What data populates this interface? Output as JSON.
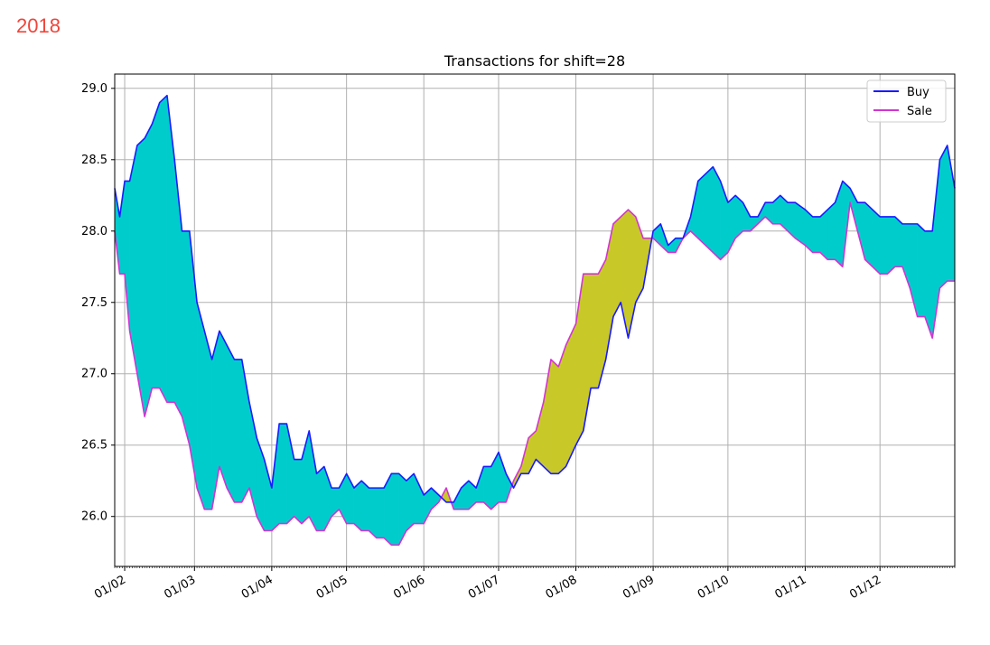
{
  "year_label": "2018",
  "colors": {
    "year_label": "#f0453a",
    "buy": "#1a1aff",
    "sale": "#d234d2",
    "fill_buy_above": "#00cccc",
    "fill_sale_above": "#c8c828",
    "grid": "#b0b0b0"
  },
  "chart_data": {
    "type": "line",
    "title": "Transactions for shift=28",
    "xlabel": "",
    "ylabel": "",
    "ylim": [
      25.65,
      29.1
    ],
    "yticks": [
      "26.0",
      "26.5",
      "27.0",
      "27.5",
      "28.0",
      "28.5",
      "29.0"
    ],
    "ytick_values": [
      26.0,
      26.5,
      27.0,
      27.5,
      28.0,
      28.5,
      29.0
    ],
    "xlim": [
      "2018-01-28",
      "2018-12-31"
    ],
    "xticks": [
      "01/02",
      "01/03",
      "01/04",
      "01/05",
      "01/06",
      "01/07",
      "01/08",
      "01/09",
      "01/10",
      "01/11",
      "01/12"
    ],
    "xtick_dates": [
      "2018-02-01",
      "2018-03-01",
      "2018-04-01",
      "2018-05-01",
      "2018-06-01",
      "2018-07-01",
      "2018-08-01",
      "2018-09-01",
      "2018-10-01",
      "2018-11-01",
      "2018-12-01"
    ],
    "grid": true,
    "legend_position": "top-right",
    "fill_between": true,
    "series": [
      {
        "name": "Buy",
        "x": [
          "2018-01-28",
          "2018-01-30",
          "2018-02-01",
          "2018-02-03",
          "2018-02-06",
          "2018-02-09",
          "2018-02-12",
          "2018-02-15",
          "2018-02-18",
          "2018-02-21",
          "2018-02-24",
          "2018-02-27",
          "2018-03-02",
          "2018-03-05",
          "2018-03-08",
          "2018-03-11",
          "2018-03-14",
          "2018-03-17",
          "2018-03-20",
          "2018-03-23",
          "2018-03-26",
          "2018-03-29",
          "2018-04-01",
          "2018-04-04",
          "2018-04-07",
          "2018-04-10",
          "2018-04-13",
          "2018-04-16",
          "2018-04-19",
          "2018-04-22",
          "2018-04-25",
          "2018-04-28",
          "2018-05-01",
          "2018-05-04",
          "2018-05-07",
          "2018-05-10",
          "2018-05-13",
          "2018-05-16",
          "2018-05-19",
          "2018-05-22",
          "2018-05-25",
          "2018-05-28",
          "2018-06-01",
          "2018-06-04",
          "2018-06-07",
          "2018-06-10",
          "2018-06-13",
          "2018-06-16",
          "2018-06-19",
          "2018-06-22",
          "2018-06-25",
          "2018-06-28",
          "2018-07-01",
          "2018-07-04",
          "2018-07-07",
          "2018-07-10",
          "2018-07-13",
          "2018-07-16",
          "2018-07-19",
          "2018-07-22",
          "2018-07-25",
          "2018-07-28",
          "2018-08-01",
          "2018-08-04",
          "2018-08-07",
          "2018-08-10",
          "2018-08-13",
          "2018-08-16",
          "2018-08-19",
          "2018-08-22",
          "2018-08-25",
          "2018-08-28",
          "2018-09-01",
          "2018-09-04",
          "2018-09-07",
          "2018-09-10",
          "2018-09-13",
          "2018-09-16",
          "2018-09-19",
          "2018-09-22",
          "2018-09-25",
          "2018-09-28",
          "2018-10-01",
          "2018-10-04",
          "2018-10-07",
          "2018-10-10",
          "2018-10-13",
          "2018-10-16",
          "2018-10-19",
          "2018-10-22",
          "2018-10-25",
          "2018-10-28",
          "2018-11-01",
          "2018-11-04",
          "2018-11-07",
          "2018-11-10",
          "2018-11-13",
          "2018-11-16",
          "2018-11-19",
          "2018-11-22",
          "2018-11-25",
          "2018-11-28",
          "2018-12-01",
          "2018-12-04",
          "2018-12-07",
          "2018-12-10",
          "2018-12-13",
          "2018-12-16",
          "2018-12-19",
          "2018-12-22",
          "2018-12-25",
          "2018-12-28",
          "2018-12-31"
        ],
        "values": [
          28.3,
          28.1,
          28.35,
          28.35,
          28.6,
          28.65,
          28.75,
          28.9,
          28.95,
          28.5,
          28.0,
          28.0,
          27.5,
          27.3,
          27.1,
          27.3,
          27.2,
          27.1,
          27.1,
          26.8,
          26.55,
          26.4,
          26.2,
          26.65,
          26.65,
          26.4,
          26.4,
          26.6,
          26.3,
          26.35,
          26.2,
          26.2,
          26.3,
          26.2,
          26.25,
          26.2,
          26.2,
          26.2,
          26.3,
          26.3,
          26.25,
          26.3,
          26.15,
          26.2,
          26.15,
          26.1,
          26.1,
          26.2,
          26.25,
          26.2,
          26.35,
          26.35,
          26.45,
          26.3,
          26.2,
          26.3,
          26.3,
          26.4,
          26.35,
          26.3,
          26.3,
          26.35,
          26.5,
          26.6,
          26.9,
          26.9,
          27.1,
          27.4,
          27.5,
          27.25,
          27.5,
          27.6,
          28.0,
          28.05,
          27.9,
          27.95,
          27.95,
          28.1,
          28.35,
          28.4,
          28.45,
          28.35,
          28.2,
          28.25,
          28.2,
          28.1,
          28.1,
          28.2,
          28.2,
          28.25,
          28.2,
          28.2,
          28.15,
          28.1,
          28.1,
          28.15,
          28.2,
          28.35,
          28.3,
          28.2,
          28.2,
          28.15,
          28.1,
          28.1,
          28.1,
          28.05,
          28.05,
          28.05,
          28.0,
          28.0,
          28.5,
          28.6,
          28.3
        ],
        "color": "#1a1aff"
      },
      {
        "name": "Sale",
        "x": [
          "2018-01-28",
          "2018-01-30",
          "2018-02-01",
          "2018-02-03",
          "2018-02-06",
          "2018-02-09",
          "2018-02-12",
          "2018-02-15",
          "2018-02-18",
          "2018-02-21",
          "2018-02-24",
          "2018-02-27",
          "2018-03-02",
          "2018-03-05",
          "2018-03-08",
          "2018-03-11",
          "2018-03-14",
          "2018-03-17",
          "2018-03-20",
          "2018-03-23",
          "2018-03-26",
          "2018-03-29",
          "2018-04-01",
          "2018-04-04",
          "2018-04-07",
          "2018-04-10",
          "2018-04-13",
          "2018-04-16",
          "2018-04-19",
          "2018-04-22",
          "2018-04-25",
          "2018-04-28",
          "2018-05-01",
          "2018-05-04",
          "2018-05-07",
          "2018-05-10",
          "2018-05-13",
          "2018-05-16",
          "2018-05-19",
          "2018-05-22",
          "2018-05-25",
          "2018-05-28",
          "2018-06-01",
          "2018-06-04",
          "2018-06-07",
          "2018-06-10",
          "2018-06-13",
          "2018-06-16",
          "2018-06-19",
          "2018-06-22",
          "2018-06-25",
          "2018-06-28",
          "2018-07-01",
          "2018-07-04",
          "2018-07-07",
          "2018-07-10",
          "2018-07-13",
          "2018-07-16",
          "2018-07-19",
          "2018-07-22",
          "2018-07-25",
          "2018-07-28",
          "2018-08-01",
          "2018-08-04",
          "2018-08-07",
          "2018-08-10",
          "2018-08-13",
          "2018-08-16",
          "2018-08-19",
          "2018-08-22",
          "2018-08-25",
          "2018-08-28",
          "2018-09-01",
          "2018-09-04",
          "2018-09-07",
          "2018-09-10",
          "2018-09-13",
          "2018-09-16",
          "2018-09-19",
          "2018-09-22",
          "2018-09-25",
          "2018-09-28",
          "2018-10-01",
          "2018-10-04",
          "2018-10-07",
          "2018-10-10",
          "2018-10-13",
          "2018-10-16",
          "2018-10-19",
          "2018-10-22",
          "2018-10-25",
          "2018-10-28",
          "2018-11-01",
          "2018-11-04",
          "2018-11-07",
          "2018-11-10",
          "2018-11-13",
          "2018-11-16",
          "2018-11-19",
          "2018-11-22",
          "2018-11-25",
          "2018-11-28",
          "2018-12-01",
          "2018-12-04",
          "2018-12-07",
          "2018-12-10",
          "2018-12-13",
          "2018-12-16",
          "2018-12-19",
          "2018-12-22",
          "2018-12-25",
          "2018-12-28",
          "2018-12-31"
        ],
        "values": [
          28.0,
          27.7,
          27.7,
          27.3,
          27.0,
          26.7,
          26.9,
          26.9,
          26.8,
          26.8,
          26.7,
          26.5,
          26.2,
          26.05,
          26.05,
          26.35,
          26.2,
          26.1,
          26.1,
          26.2,
          26.0,
          25.9,
          25.9,
          25.95,
          25.95,
          26.0,
          25.95,
          26.0,
          25.9,
          25.9,
          26.0,
          26.05,
          25.95,
          25.95,
          25.9,
          25.9,
          25.85,
          25.85,
          25.8,
          25.8,
          25.9,
          25.95,
          25.95,
          26.05,
          26.1,
          26.2,
          26.05,
          26.05,
          26.05,
          26.1,
          26.1,
          26.05,
          26.1,
          26.1,
          26.25,
          26.35,
          26.55,
          26.6,
          26.8,
          27.1,
          27.05,
          27.2,
          27.35,
          27.7,
          27.7,
          27.7,
          27.8,
          28.05,
          28.1,
          28.15,
          28.1,
          27.95,
          27.95,
          27.9,
          27.85,
          27.85,
          27.95,
          28.0,
          27.95,
          27.9,
          27.85,
          27.8,
          27.85,
          27.95,
          28.0,
          28.0,
          28.05,
          28.1,
          28.05,
          28.05,
          28.0,
          27.95,
          27.9,
          27.85,
          27.85,
          27.8,
          27.8,
          27.75,
          28.2,
          28.0,
          27.8,
          27.75,
          27.7,
          27.7,
          27.75,
          27.75,
          27.6,
          27.4,
          27.4,
          27.25,
          27.6,
          27.65,
          27.65
        ],
        "color": "#d234d2"
      }
    ]
  }
}
